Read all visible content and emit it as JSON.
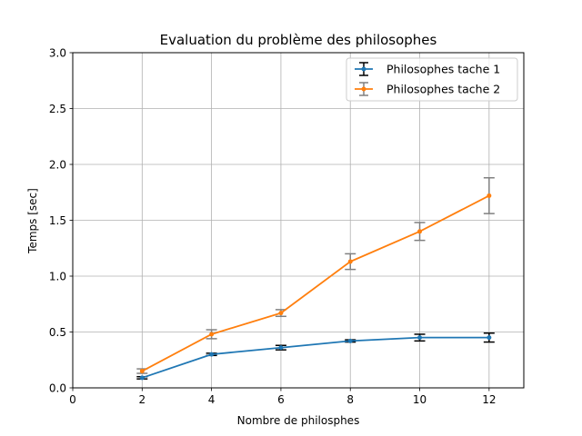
{
  "chart_data": {
    "type": "line",
    "title": "Evaluation du problème des philosophes",
    "xlabel": "Nombre de philosphes",
    "ylabel": "Temps [sec]",
    "xlim": [
      0,
      13
    ],
    "ylim": [
      0,
      3.0
    ],
    "xticks": [
      0,
      2,
      4,
      6,
      8,
      10,
      12
    ],
    "yticks": [
      0.0,
      0.5,
      1.0,
      1.5,
      2.0,
      2.5,
      3.0
    ],
    "xtick_labels": [
      "0",
      "2",
      "4",
      "6",
      "8",
      "10",
      "12"
    ],
    "ytick_labels": [
      "0.0",
      "0.5",
      "1.0",
      "1.5",
      "2.0",
      "2.5",
      "3.0"
    ],
    "grid": true,
    "legend_position": "top-right",
    "x": [
      2,
      4,
      6,
      8,
      10,
      12
    ],
    "series": [
      {
        "name": "Philosophes tache 1",
        "color": "#1f77b4",
        "errcolor": "#000000",
        "values": [
          0.09,
          0.3,
          0.36,
          0.42,
          0.45,
          0.45
        ],
        "errors": [
          0.01,
          0.01,
          0.02,
          0.01,
          0.03,
          0.04
        ]
      },
      {
        "name": "Philosophes tache 2",
        "color": "#ff7f0e",
        "errcolor": "#808080",
        "values": [
          0.15,
          0.48,
          0.67,
          1.13,
          1.4,
          1.72
        ],
        "errors": [
          0.02,
          0.04,
          0.03,
          0.07,
          0.08,
          0.16
        ]
      }
    ]
  }
}
